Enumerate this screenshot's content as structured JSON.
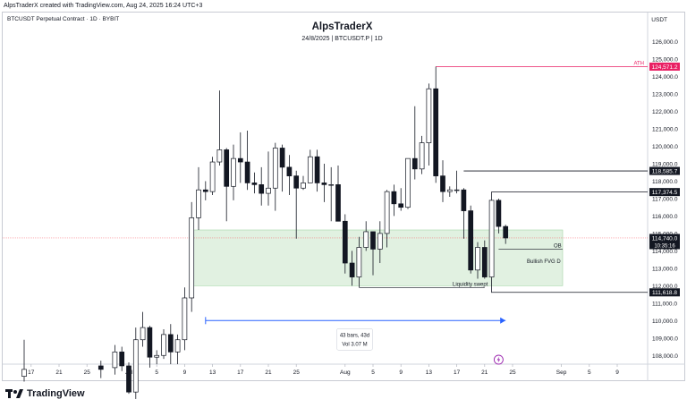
{
  "header": {
    "created_by": "AlpsTraderX created with TradingView.com, Aug 24, 2025 16:24 UTC+3",
    "symbol_line": "BTCUSDT Perpetual Contract · 1D · BYBIT",
    "currency": "USDT",
    "title": "AlpsTraderX",
    "subtitle": "24/8/2025 | BTCUSDT.P | 1D"
  },
  "footer": {
    "brand": "TradingView"
  },
  "annotations": {
    "ath": "ATH",
    "ob": "OB",
    "fvg": "Bullish FVG D",
    "liquidity": "Liquidity swept",
    "measure_bars": "43 bars, 43d",
    "measure_vol": "Vol 3.07 M"
  },
  "price_tags": [
    {
      "label": "124,571.2",
      "value": 124571.2,
      "color": "#e91e63"
    },
    {
      "label": "118,585.7",
      "value": 118585.7,
      "color": "#131722"
    },
    {
      "label": "117,374.5",
      "value": 117374.5,
      "color": "#131722"
    },
    {
      "label": "114,740.0",
      "value": 114740.0,
      "color": "#131722",
      "sub": "10:35:16"
    },
    {
      "label": "111,618.8",
      "value": 111618.8,
      "color": "#131722"
    }
  ],
  "colors": {
    "up": "#ffffff",
    "down": "#131722",
    "ath": "#e91e63",
    "zone": "#c8e6c9",
    "measure": "#2962ff",
    "current": "#f7525f"
  },
  "chart_data": {
    "type": "candlestick",
    "y_axis_ticks": [
      108000,
      109000,
      110000,
      111000,
      112000,
      113000,
      114000,
      115000,
      116000,
      117000,
      118000,
      119000,
      120000,
      121000,
      122000,
      123000,
      124000,
      125000,
      126000
    ],
    "x_axis_ticks": [
      "17",
      "21",
      "25",
      "Jul",
      "5",
      "9",
      "13",
      "17",
      "21",
      "25",
      "Aug",
      "5",
      "9",
      "13",
      "17",
      "21",
      "25",
      "Sep",
      "5",
      "9"
    ],
    "ylim": [
      107500,
      126700
    ],
    "candles": [
      {
        "date": "2025-06-16",
        "o": 106800,
        "h": 108900,
        "l": 106500,
        "c": 107200
      },
      {
        "date": "2025-06-27",
        "o": 107400,
        "h": 107700,
        "l": 106700,
        "c": 107200
      },
      {
        "date": "2025-06-29",
        "o": 107300,
        "h": 108600,
        "l": 106900,
        "c": 108200
      },
      {
        "date": "2025-06-30",
        "o": 108200,
        "h": 108500,
        "l": 107100,
        "c": 107400
      },
      {
        "date": "2025-07-01",
        "o": 107400,
        "h": 107600,
        "l": 105800,
        "c": 105900
      },
      {
        "date": "2025-07-02",
        "o": 105900,
        "h": 109600,
        "l": 105500,
        "c": 108900
      },
      {
        "date": "2025-07-03",
        "o": 108900,
        "h": 110500,
        "l": 108500,
        "c": 109600
      },
      {
        "date": "2025-07-04",
        "o": 109600,
        "h": 109700,
        "l": 107300,
        "c": 107900
      },
      {
        "date": "2025-07-05",
        "o": 107900,
        "h": 108300,
        "l": 107500,
        "c": 108000
      },
      {
        "date": "2025-07-06",
        "o": 108000,
        "h": 109500,
        "l": 107800,
        "c": 109200
      },
      {
        "date": "2025-07-07",
        "o": 109200,
        "h": 109800,
        "l": 107500,
        "c": 108200
      },
      {
        "date": "2025-07-08",
        "o": 108200,
        "h": 109200,
        "l": 107500,
        "c": 108900
      },
      {
        "date": "2025-07-09",
        "o": 108900,
        "h": 111900,
        "l": 108300,
        "c": 111300
      },
      {
        "date": "2025-07-10",
        "o": 111300,
        "h": 116800,
        "l": 110500,
        "c": 115900
      },
      {
        "date": "2025-07-11",
        "o": 115900,
        "h": 118800,
        "l": 115200,
        "c": 117500
      },
      {
        "date": "2025-07-12",
        "o": 117500,
        "h": 118000,
        "l": 116900,
        "c": 117400
      },
      {
        "date": "2025-07-13",
        "o": 117400,
        "h": 119400,
        "l": 117200,
        "c": 119100
      },
      {
        "date": "2025-07-14",
        "o": 119100,
        "h": 123200,
        "l": 118900,
        "c": 119800
      },
      {
        "date": "2025-07-15",
        "o": 119800,
        "h": 119900,
        "l": 115700,
        "c": 117700
      },
      {
        "date": "2025-07-16",
        "o": 117700,
        "h": 120100,
        "l": 116900,
        "c": 119300
      },
      {
        "date": "2025-07-17",
        "o": 119300,
        "h": 120800,
        "l": 117900,
        "c": 119100
      },
      {
        "date": "2025-07-18",
        "o": 119100,
        "h": 120900,
        "l": 117500,
        "c": 117900
      },
      {
        "date": "2025-07-19",
        "o": 117900,
        "h": 118500,
        "l": 117300,
        "c": 117800
      },
      {
        "date": "2025-07-20",
        "o": 117800,
        "h": 118800,
        "l": 116600,
        "c": 117300
      },
      {
        "date": "2025-07-21",
        "o": 117300,
        "h": 119700,
        "l": 116600,
        "c": 117600
      },
      {
        "date": "2025-07-22",
        "o": 117600,
        "h": 120200,
        "l": 116300,
        "c": 119900
      },
      {
        "date": "2025-07-23",
        "o": 119900,
        "h": 120100,
        "l": 117400,
        "c": 118800
      },
      {
        "date": "2025-07-24",
        "o": 118800,
        "h": 119500,
        "l": 117200,
        "c": 118300
      },
      {
        "date": "2025-07-25",
        "o": 118300,
        "h": 118600,
        "l": 114700,
        "c": 117600
      },
      {
        "date": "2025-07-26",
        "o": 117600,
        "h": 118300,
        "l": 117500,
        "c": 117900
      },
      {
        "date": "2025-07-27",
        "o": 117900,
        "h": 119800,
        "l": 117900,
        "c": 119400
      },
      {
        "date": "2025-07-28",
        "o": 119400,
        "h": 119800,
        "l": 117400,
        "c": 117900
      },
      {
        "date": "2025-07-29",
        "o": 117900,
        "h": 119000,
        "l": 116800,
        "c": 117800
      },
      {
        "date": "2025-07-30",
        "o": 117800,
        "h": 118800,
        "l": 115700,
        "c": 117800
      },
      {
        "date": "2025-07-31",
        "o": 117800,
        "h": 118900,
        "l": 115800,
        "c": 115700
      },
      {
        "date": "2025-08-01",
        "o": 115700,
        "h": 116100,
        "l": 112700,
        "c": 113300
      },
      {
        "date": "2025-08-02",
        "o": 113300,
        "h": 114000,
        "l": 112000,
        "c": 112500
      },
      {
        "date": "2025-08-03",
        "o": 112500,
        "h": 114800,
        "l": 111900,
        "c": 114200
      },
      {
        "date": "2025-08-04",
        "o": 114200,
        "h": 115700,
        "l": 114000,
        "c": 115100
      },
      {
        "date": "2025-08-05",
        "o": 115100,
        "h": 115100,
        "l": 112600,
        "c": 114100
      },
      {
        "date": "2025-08-06",
        "o": 114100,
        "h": 115700,
        "l": 113300,
        "c": 115000
      },
      {
        "date": "2025-08-07",
        "o": 115000,
        "h": 117500,
        "l": 114200,
        "c": 117400
      },
      {
        "date": "2025-08-08",
        "o": 117400,
        "h": 117800,
        "l": 116000,
        "c": 116700
      },
      {
        "date": "2025-08-09",
        "o": 116700,
        "h": 117600,
        "l": 116300,
        "c": 116500
      },
      {
        "date": "2025-08-10",
        "o": 116500,
        "h": 119300,
        "l": 116400,
        "c": 119300
      },
      {
        "date": "2025-08-11",
        "o": 119300,
        "h": 122300,
        "l": 118100,
        "c": 118700
      },
      {
        "date": "2025-08-12",
        "o": 118700,
        "h": 120600,
        "l": 118400,
        "c": 120200
      },
      {
        "date": "2025-08-13",
        "o": 120200,
        "h": 123600,
        "l": 118900,
        "c": 123300
      },
      {
        "date": "2025-08-14",
        "o": 123300,
        "h": 124571,
        "l": 117900,
        "c": 118300
      },
      {
        "date": "2025-08-15",
        "o": 118300,
        "h": 119200,
        "l": 116800,
        "c": 117400
      },
      {
        "date": "2025-08-16",
        "o": 117400,
        "h": 117700,
        "l": 117100,
        "c": 117500
      },
      {
        "date": "2025-08-17",
        "o": 117500,
        "h": 118600,
        "l": 117300,
        "c": 117500
      },
      {
        "date": "2025-08-18",
        "o": 117500,
        "h": 117600,
        "l": 114700,
        "c": 116300
      },
      {
        "date": "2025-08-19",
        "o": 116300,
        "h": 116600,
        "l": 112700,
        "c": 112900
      },
      {
        "date": "2025-08-20",
        "o": 112900,
        "h": 114500,
        "l": 112400,
        "c": 114200
      },
      {
        "date": "2025-08-21",
        "o": 114200,
        "h": 114600,
        "l": 112400,
        "c": 112500
      },
      {
        "date": "2025-08-22",
        "o": 112500,
        "h": 117400,
        "l": 111600,
        "c": 116900
      },
      {
        "date": "2025-08-23",
        "o": 116900,
        "h": 117000,
        "l": 115000,
        "c": 115400
      },
      {
        "date": "2025-08-24",
        "o": 115400,
        "h": 115500,
        "l": 114400,
        "c": 114740
      }
    ],
    "levels": {
      "ath": 124571.2,
      "ob_top": 115200,
      "fvg_bottom": 112000,
      "liquidity": 111900,
      "h1": 118585.7,
      "h2": 117374.5,
      "low": 111618.8,
      "current": 114740.0
    }
  }
}
